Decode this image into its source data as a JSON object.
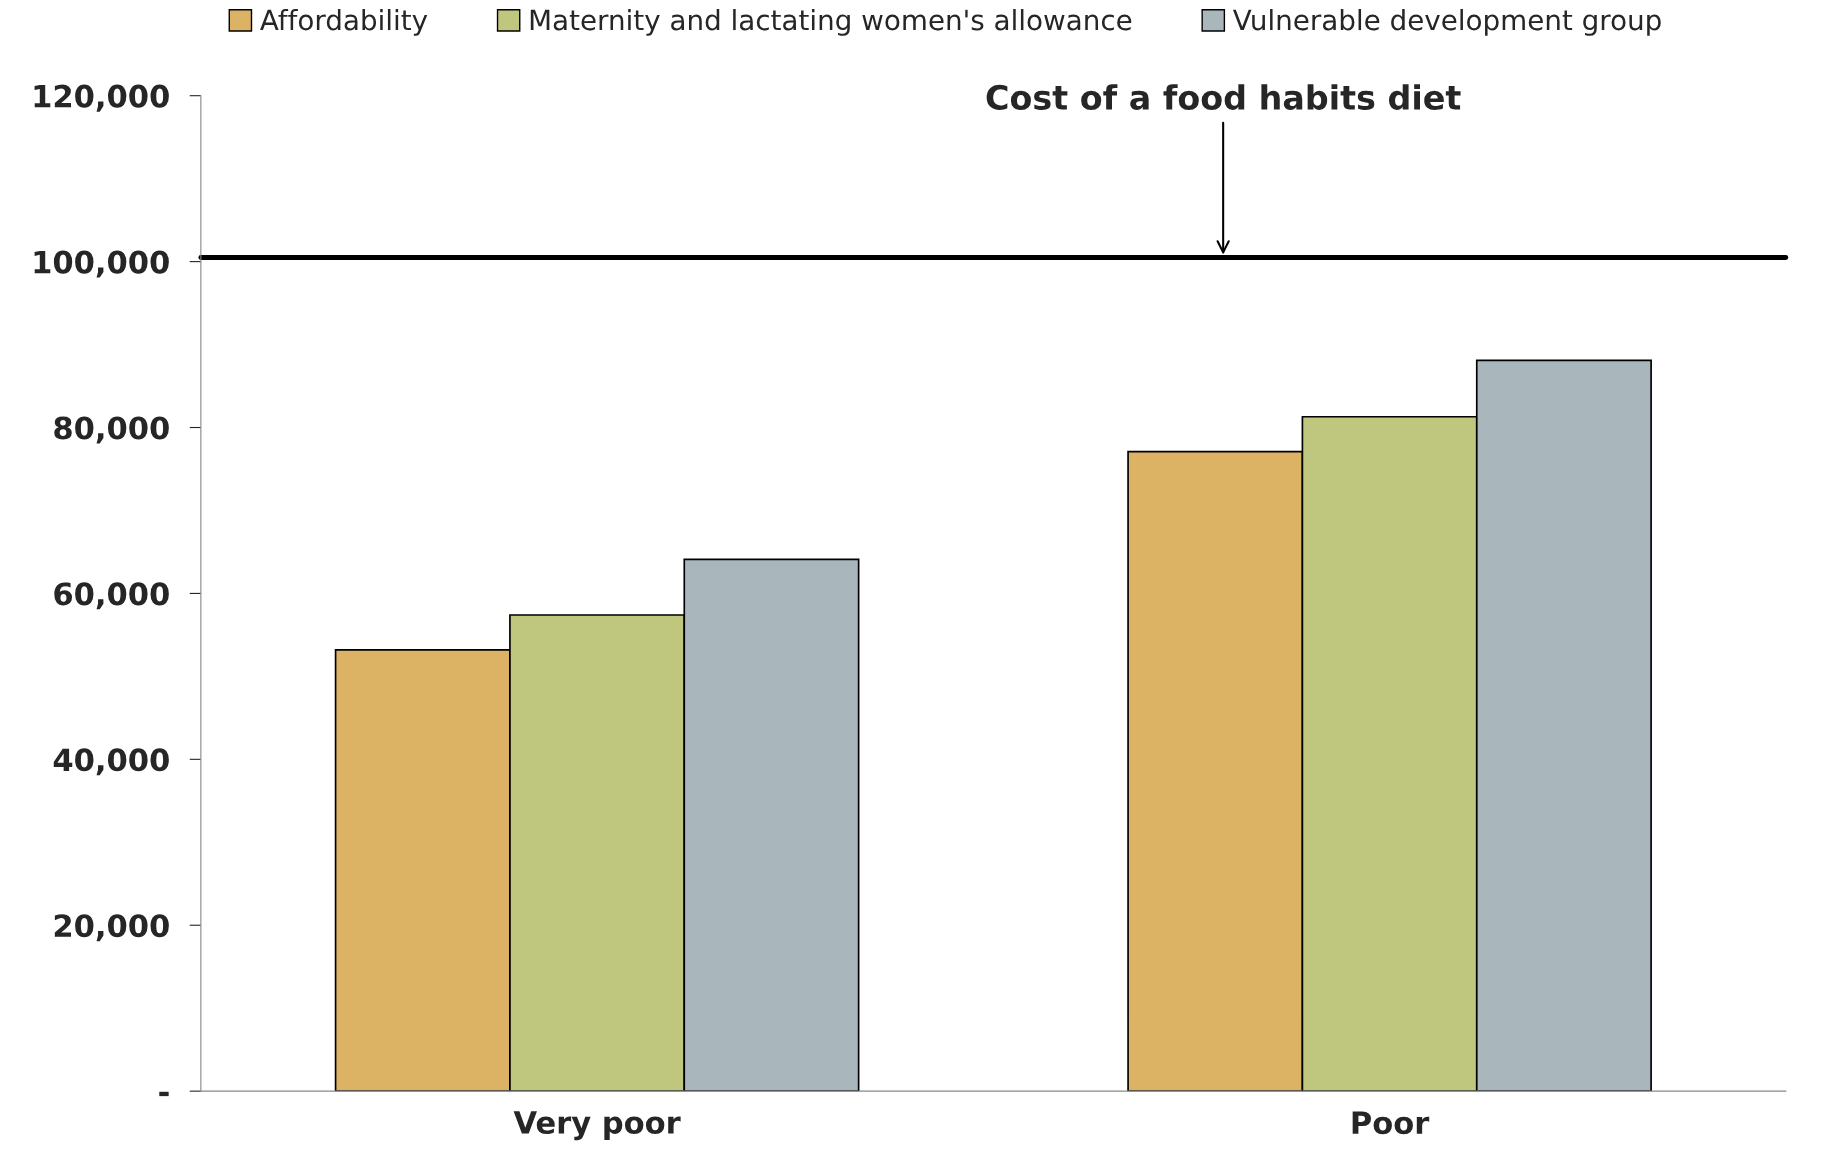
{
  "chart_data": {
    "type": "bar",
    "categories": [
      "Very poor",
      "Poor"
    ],
    "series": [
      {
        "name": "Affordability",
        "color": "#dcb264",
        "values": [
          53200,
          77100
        ]
      },
      {
        "name": "Maternity and lactating women's allowance",
        "color": "#bfc77f",
        "values": [
          57400,
          81300
        ]
      },
      {
        "name": "Vulnerable development group",
        "color": "#a9b7bd",
        "values": [
          64100,
          88100
        ]
      }
    ],
    "ylim": [
      0,
      120000
    ],
    "yticks": [
      {
        "value": 0,
        "label": "-"
      },
      {
        "value": 20000,
        "label": "20,000"
      },
      {
        "value": 40000,
        "label": "40,000"
      },
      {
        "value": 60000,
        "label": "60,000"
      },
      {
        "value": 80000,
        "label": "80,000"
      },
      {
        "value": 100000,
        "label": "100,000"
      },
      {
        "value": 120000,
        "label": "120,000"
      }
    ],
    "ref_lines": [
      {
        "axis": "y",
        "value": 100500,
        "label": "Cost of a food habits diet",
        "color": "#000000",
        "line_style": "solid"
      }
    ],
    "legend": "top",
    "grid": false
  }
}
